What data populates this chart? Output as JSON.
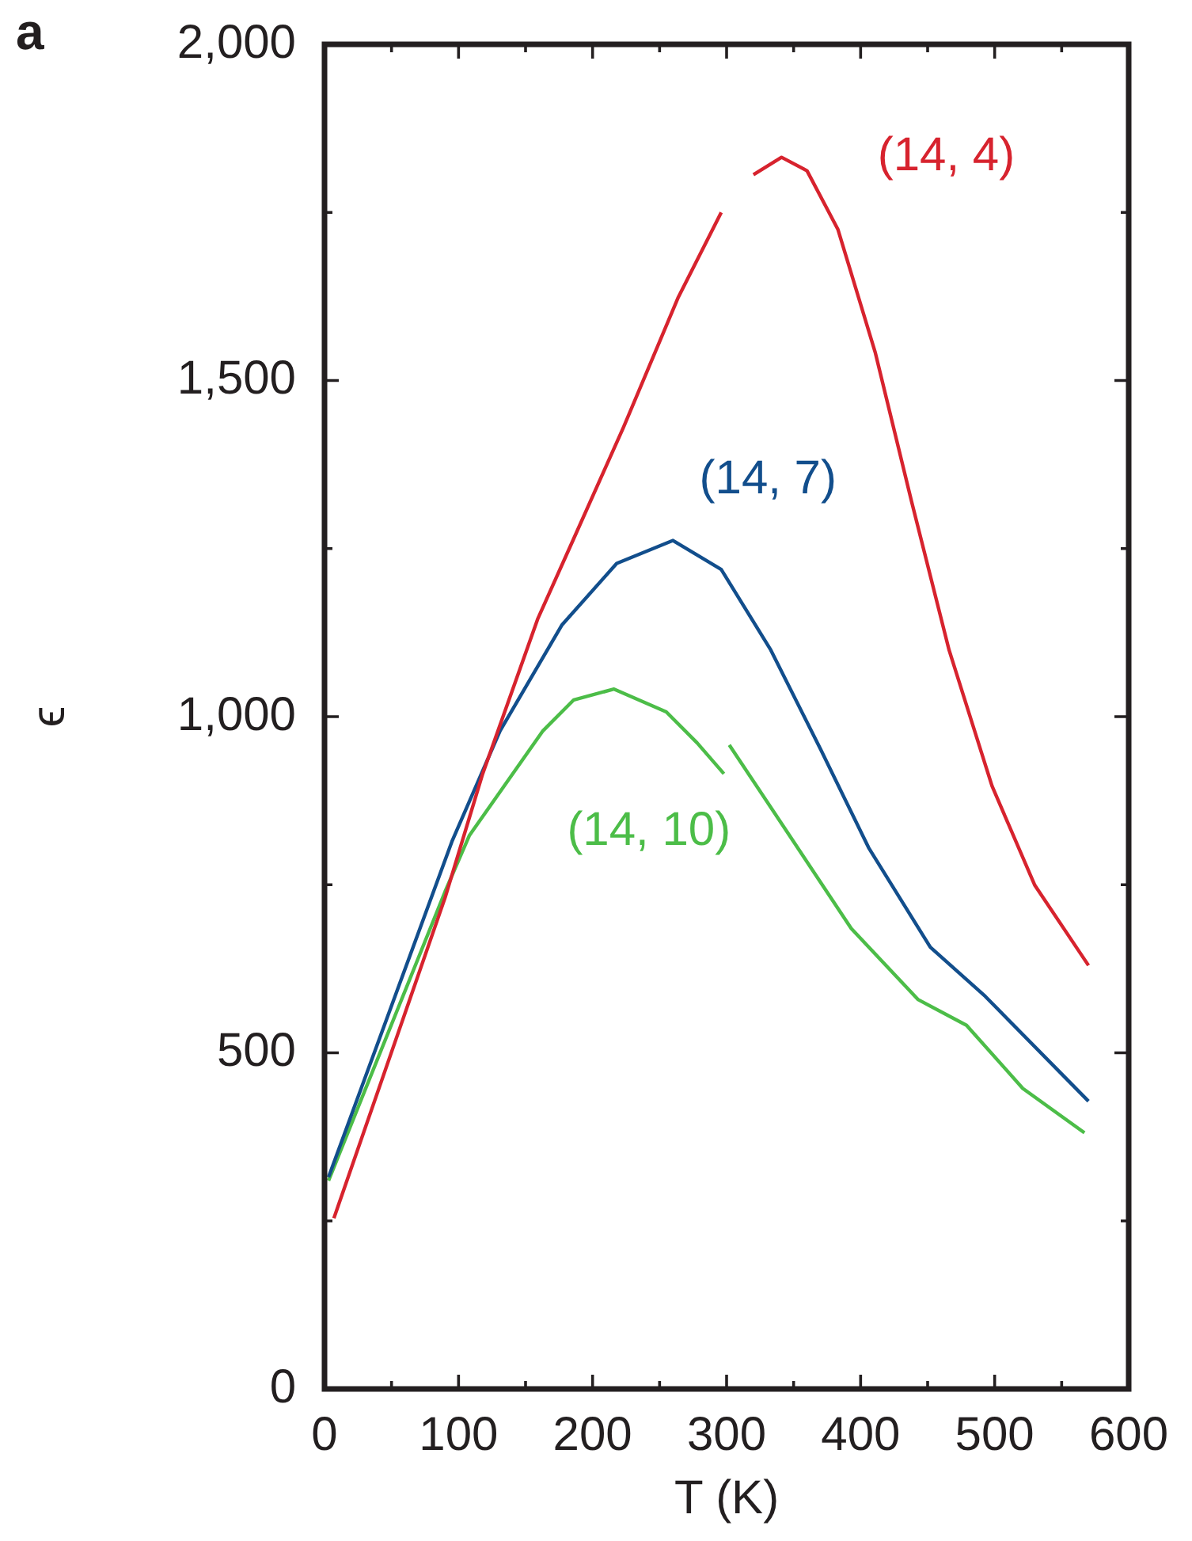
{
  "chart_data": {
    "type": "line",
    "xlabel": "T (K)",
    "ylabel": "ϵ",
    "annotations": [
      "a"
    ],
    "xlim": [
      0,
      600
    ],
    "ylim": [
      0,
      2000
    ],
    "xticks": [
      0,
      {
        "value": 50,
        "label": null
      },
      100,
      {
        "value": 150,
        "label": null
      },
      200,
      {
        "value": 250,
        "label": null
      },
      300,
      {
        "value": 350,
        "label": null
      },
      400,
      {
        "value": 450,
        "label": null
      },
      500,
      {
        "value": 550,
        "label": null
      },
      600
    ],
    "yticks": [
      0,
      {
        "value": 250,
        "label": null
      },
      {
        "value": 500,
        "label": "500"
      },
      {
        "value": 750,
        "label": null
      },
      {
        "value": 1000,
        "label": "1,000"
      },
      {
        "value": 1250,
        "label": null
      },
      {
        "value": 1500,
        "label": "1,500"
      },
      {
        "value": 1750,
        "label": null
      },
      {
        "value": 2000,
        "label": "2,000"
      }
    ],
    "grid": false,
    "legend": false,
    "marker": "none",
    "line_style": "solid",
    "series": [
      {
        "name": "(14, 4)",
        "color": "#d7232e",
        "x": [
          7,
          90,
          118,
          159,
          186,
          223,
          264,
          296,
          300,
          320,
          341,
          360,
          383,
          411,
          438,
          466,
          498,
          530,
          570
        ],
        "values": [
          254,
          731,
          915,
          1145,
          1265,
          1430,
          1624,
          1750,
          null,
          1806,
          1832,
          1812,
          1725,
          1541,
          1320,
          1099,
          897,
          749,
          630
        ]
      },
      {
        "name": "(14, 7)",
        "color": "#124e8c",
        "x": [
          3,
          95,
          131,
          177,
          218,
          260,
          296,
          333,
          370,
          406,
          452,
          493,
          570
        ],
        "values": [
          315,
          814,
          979,
          1136,
          1228,
          1262,
          1219,
          1099,
          952,
          805,
          657,
          584,
          428
        ]
      },
      {
        "name": "(14, 10)",
        "color": "#4cbd48",
        "x": [
          3,
          90,
          108,
          163,
          186,
          216,
          255,
          278,
          298,
          300,
          302,
          347,
          393,
          443,
          479,
          521,
          567
        ],
        "values": [
          310,
          740,
          823,
          979,
          1025,
          1041,
          1007,
          961,
          915,
          null,
          958,
          823,
          685,
          579,
          541,
          447,
          381
        ]
      }
    ]
  }
}
